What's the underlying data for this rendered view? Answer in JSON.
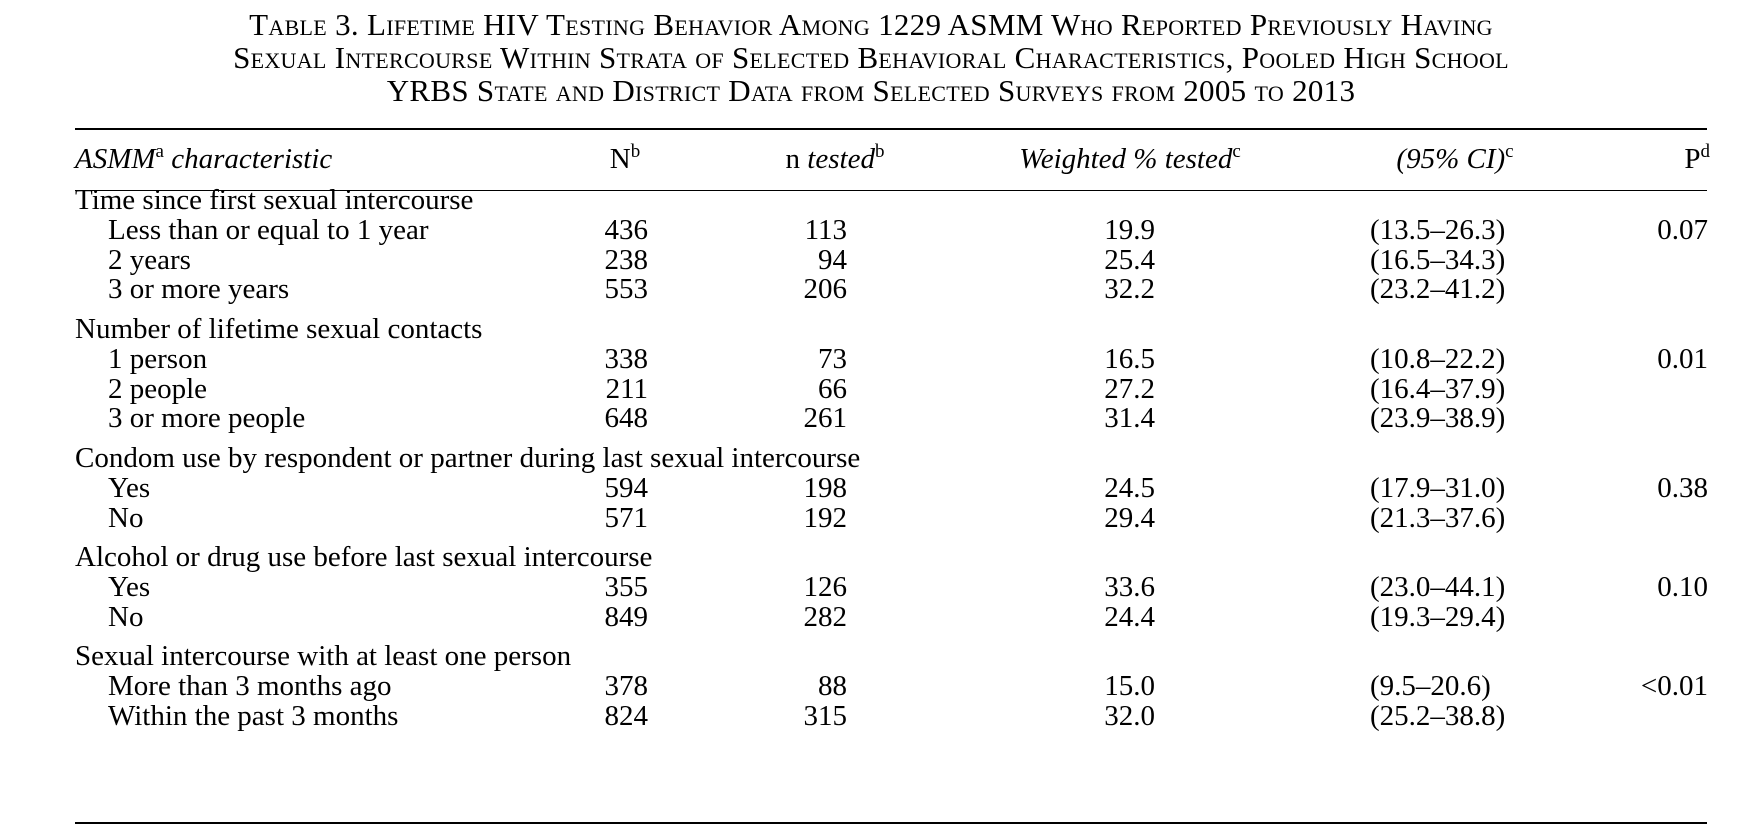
{
  "caption": {
    "line1": "Table 3. Lifetime HIV Testing Behavior Among 1229 ASMM Who Reported Previously Having",
    "line2": "Sexual Intercourse Within Strata of Selected Behavioral Characteristics, Pooled High School",
    "line3": "YRBS State and District Data from Selected Surveys from 2005 to 2013"
  },
  "headers": {
    "characteristic": "ASMM",
    "characteristic_sup": "a",
    "characteristic_rest": " characteristic",
    "n": "N",
    "n_sup": "b",
    "n_tested_prefix": "n",
    "n_tested_rest": " tested",
    "n_tested_sup": "b",
    "weighted": "Weighted % tested",
    "weighted_sup": "c",
    "ci": "(95% CI)",
    "ci_sup": "c",
    "p": "P",
    "p_sup": "d"
  },
  "groups": [
    {
      "title": "Time since first sexual intercourse",
      "rows": [
        {
          "label": "Less than or equal to 1 year",
          "n": "436",
          "tested": "113",
          "pct": "19.9",
          "ci": "(13.5–26.3)",
          "p": "0.07"
        },
        {
          "label": "2 years",
          "n": "238",
          "tested": "94",
          "pct": "25.4",
          "ci": "(16.5–34.3)",
          "p": ""
        },
        {
          "label": "3 or more years",
          "n": "553",
          "tested": "206",
          "pct": "32.2",
          "ci": "(23.2–41.2)",
          "p": ""
        }
      ]
    },
    {
      "title": "Number of lifetime sexual contacts",
      "rows": [
        {
          "label": "1 person",
          "n": "338",
          "tested": "73",
          "pct": "16.5",
          "ci": "(10.8–22.2)",
          "p": "0.01"
        },
        {
          "label": "2 people",
          "n": "211",
          "tested": "66",
          "pct": "27.2",
          "ci": "(16.4–37.9)",
          "p": ""
        },
        {
          "label": "3 or more people",
          "n": "648",
          "tested": "261",
          "pct": "31.4",
          "ci": "(23.9–38.9)",
          "p": ""
        }
      ]
    },
    {
      "title": "Condom use by respondent or partner during last sexual intercourse",
      "rows": [
        {
          "label": "Yes",
          "n": "594",
          "tested": "198",
          "pct": "24.5",
          "ci": "(17.9–31.0)",
          "p": "0.38"
        },
        {
          "label": "No",
          "n": "571",
          "tested": "192",
          "pct": "29.4",
          "ci": "(21.3–37.6)",
          "p": ""
        }
      ]
    },
    {
      "title": "Alcohol or drug use before last sexual intercourse",
      "rows": [
        {
          "label": "Yes",
          "n": "355",
          "tested": "126",
          "pct": "33.6",
          "ci": "(23.0–44.1)",
          "p": "0.10"
        },
        {
          "label": "No",
          "n": "849",
          "tested": "282",
          "pct": "24.4",
          "ci": "(19.3–29.4)",
          "p": ""
        }
      ]
    },
    {
      "title": "Sexual intercourse with at least one person",
      "rows": [
        {
          "label": "More than 3 months ago",
          "n": "378",
          "tested": "88",
          "pct": "15.0",
          "ci": "(9.5–20.6)",
          "p": "<0.01"
        },
        {
          "label": "Within the past 3 months",
          "n": "824",
          "tested": "315",
          "pct": "32.0",
          "ci": "(25.2–38.8)",
          "p": ""
        }
      ]
    }
  ]
}
